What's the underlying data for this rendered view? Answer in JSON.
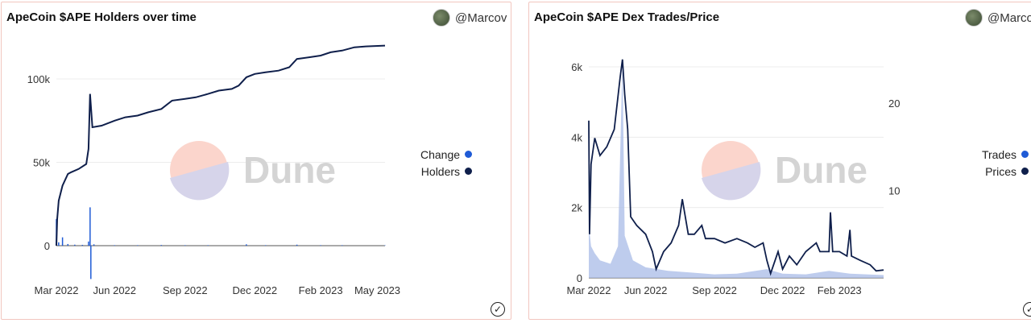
{
  "charts": [
    {
      "title": "ApeCoin $APE Holders over time",
      "author": "@Marcov",
      "watermark": "Dune",
      "legend": [
        {
          "name": "Change",
          "color": "#1f5bd6"
        },
        {
          "name": "Holders",
          "color": "#0f1f4b"
        }
      ],
      "y_ticks": [
        "100k",
        "50k",
        "0"
      ],
      "x_ticks": [
        "Mar 2022",
        "Jun 2022",
        "Sep 2022",
        "Dec 2022",
        "Feb 2023",
        "May 2023"
      ]
    },
    {
      "title": "ApeCoin $APE Dex Trades/Price",
      "author": "@Marco",
      "watermark": "Dune",
      "legend": [
        {
          "name": "Trades",
          "color": "#1f5bd6"
        },
        {
          "name": "Prices",
          "color": "#0f1f4b"
        }
      ],
      "y_ticks": [
        "6k",
        "4k",
        "2k",
        "0"
      ],
      "y2_ticks": [
        "20",
        "10"
      ],
      "x_ticks": [
        "Mar 2022",
        "Jun 2022",
        "Sep 2022",
        "Dec 2022",
        "Feb 2023"
      ]
    }
  ],
  "chart_data": [
    {
      "type": "line",
      "title": "ApeCoin $APE Holders over time",
      "x_range": [
        "2022-03-17",
        "2023-05-20"
      ],
      "ylim": [
        -20000,
        130000
      ],
      "grid": true,
      "legend_position": "right",
      "series": [
        {
          "name": "Holders",
          "color": "#0f1f4b",
          "points": [
            [
              "2022-03-17",
              0
            ],
            [
              "2022-03-18",
              16000
            ],
            [
              "2022-03-20",
              27000
            ],
            [
              "2022-03-25",
              36000
            ],
            [
              "2022-04-01",
              43000
            ],
            [
              "2022-04-05",
              44000
            ],
            [
              "2022-04-15",
              46000
            ],
            [
              "2022-04-25",
              49000
            ],
            [
              "2022-04-28",
              58000
            ],
            [
              "2022-04-30",
              91000
            ],
            [
              "2022-05-03",
              71000
            ],
            [
              "2022-05-15",
              72000
            ],
            [
              "2022-06-01",
              75000
            ],
            [
              "2022-06-15",
              77000
            ],
            [
              "2022-07-01",
              78000
            ],
            [
              "2022-07-15",
              80000
            ],
            [
              "2022-08-01",
              82000
            ],
            [
              "2022-08-15",
              87000
            ],
            [
              "2022-09-01",
              88000
            ],
            [
              "2022-09-15",
              89000
            ],
            [
              "2022-10-01",
              91000
            ],
            [
              "2022-10-15",
              93000
            ],
            [
              "2022-11-01",
              94000
            ],
            [
              "2022-11-10",
              96000
            ],
            [
              "2022-11-20",
              101000
            ],
            [
              "2022-12-01",
              103000
            ],
            [
              "2022-12-15",
              104000
            ],
            [
              "2023-01-01",
              105000
            ],
            [
              "2023-01-15",
              107000
            ],
            [
              "2023-01-25",
              112000
            ],
            [
              "2023-02-10",
              113000
            ],
            [
              "2023-02-25",
              114000
            ],
            [
              "2023-03-10",
              116000
            ],
            [
              "2023-03-25",
              117000
            ],
            [
              "2023-04-10",
              119000
            ],
            [
              "2023-04-25",
              119500
            ],
            [
              "2023-05-20",
              120000
            ]
          ]
        },
        {
          "name": "Change",
          "color": "#1f5bd6",
          "points": [
            [
              "2022-03-17",
              16000
            ],
            [
              "2022-03-20",
              2000
            ],
            [
              "2022-03-25",
              5000
            ],
            [
              "2022-04-01",
              1000
            ],
            [
              "2022-04-10",
              600
            ],
            [
              "2022-04-20",
              500
            ],
            [
              "2022-04-28",
              2500
            ],
            [
              "2022-04-30",
              23000
            ],
            [
              "2022-05-01",
              -20000
            ],
            [
              "2022-05-05",
              800
            ],
            [
              "2022-06-01",
              300
            ],
            [
              "2022-07-01",
              300
            ],
            [
              "2022-08-01",
              400
            ],
            [
              "2022-09-01",
              300
            ],
            [
              "2022-10-01",
              300
            ],
            [
              "2022-11-20",
              800
            ],
            [
              "2022-12-15",
              300
            ],
            [
              "2023-01-25",
              600
            ],
            [
              "2023-02-25",
              300
            ],
            [
              "2023-03-25",
              300
            ],
            [
              "2023-05-20",
              200
            ]
          ]
        }
      ]
    },
    {
      "type": "line",
      "title": "ApeCoin $APE Dex Trades/Price",
      "x_range": [
        "2022-03-17",
        "2023-04-15"
      ],
      "ylim": [
        0,
        6800
      ],
      "y2lim": [
        0,
        26
      ],
      "grid": true,
      "legend_position": "right",
      "series": [
        {
          "name": "Trades",
          "color": "#1f5bd6",
          "axis": "left",
          "type": "area",
          "points": [
            [
              "2022-03-17",
              1500
            ],
            [
              "2022-03-20",
              900
            ],
            [
              "2022-03-25",
              700
            ],
            [
              "2022-04-01",
              500
            ],
            [
              "2022-04-15",
              400
            ],
            [
              "2022-04-25",
              900
            ],
            [
              "2022-05-01",
              6200
            ],
            [
              "2022-05-04",
              1200
            ],
            [
              "2022-05-15",
              500
            ],
            [
              "2022-06-01",
              300
            ],
            [
              "2022-07-01",
              200
            ],
            [
              "2022-08-01",
              150
            ],
            [
              "2022-09-01",
              100
            ],
            [
              "2022-10-01",
              120
            ],
            [
              "2022-11-10",
              250
            ],
            [
              "2022-12-01",
              120
            ],
            [
              "2023-01-01",
              100
            ],
            [
              "2023-02-01",
              200
            ],
            [
              "2023-03-01",
              120
            ],
            [
              "2023-04-15",
              80
            ]
          ]
        },
        {
          "name": "Prices",
          "color": "#0f1f4b",
          "axis": "right",
          "points": [
            [
              "2022-03-17",
              18
            ],
            [
              "2022-03-18",
              5
            ],
            [
              "2022-03-20",
              13
            ],
            [
              "2022-03-25",
              16
            ],
            [
              "2022-04-01",
              14
            ],
            [
              "2022-04-10",
              15
            ],
            [
              "2022-04-20",
              17
            ],
            [
              "2022-04-28",
              23
            ],
            [
              "2022-05-01",
              25
            ],
            [
              "2022-05-04",
              21
            ],
            [
              "2022-05-08",
              17
            ],
            [
              "2022-05-12",
              7
            ],
            [
              "2022-05-20",
              6
            ],
            [
              "2022-06-01",
              5
            ],
            [
              "2022-06-10",
              3
            ],
            [
              "2022-06-15",
              1
            ],
            [
              "2022-06-25",
              3
            ],
            [
              "2022-07-05",
              4
            ],
            [
              "2022-07-15",
              6
            ],
            [
              "2022-07-20",
              9
            ],
            [
              "2022-07-28",
              5
            ],
            [
              "2022-08-05",
              5
            ],
            [
              "2022-08-15",
              6
            ],
            [
              "2022-08-20",
              4.5
            ],
            [
              "2022-09-01",
              4.5
            ],
            [
              "2022-09-15",
              4
            ],
            [
              "2022-10-01",
              4.5
            ],
            [
              "2022-10-15",
              4
            ],
            [
              "2022-10-25",
              3.5
            ],
            [
              "2022-11-05",
              4
            ],
            [
              "2022-11-10",
              2
            ],
            [
              "2022-11-15",
              0.5
            ],
            [
              "2022-11-25",
              3
            ],
            [
              "2022-12-01",
              1
            ],
            [
              "2022-12-10",
              2.5
            ],
            [
              "2022-12-20",
              1.5
            ],
            [
              "2023-01-01",
              3
            ],
            [
              "2023-01-15",
              4
            ],
            [
              "2023-01-20",
              3
            ],
            [
              "2023-02-01",
              3
            ],
            [
              "2023-02-03",
              7.5
            ],
            [
              "2023-02-06",
              3
            ],
            [
              "2023-02-15",
              3
            ],
            [
              "2023-02-25",
              2.5
            ],
            [
              "2023-03-01",
              5.5
            ],
            [
              "2023-03-03",
              2.5
            ],
            [
              "2023-03-15",
              2
            ],
            [
              "2023-03-28",
              1.5
            ],
            [
              "2023-04-05",
              0.8
            ],
            [
              "2023-04-15",
              0.9
            ]
          ]
        }
      ]
    }
  ]
}
